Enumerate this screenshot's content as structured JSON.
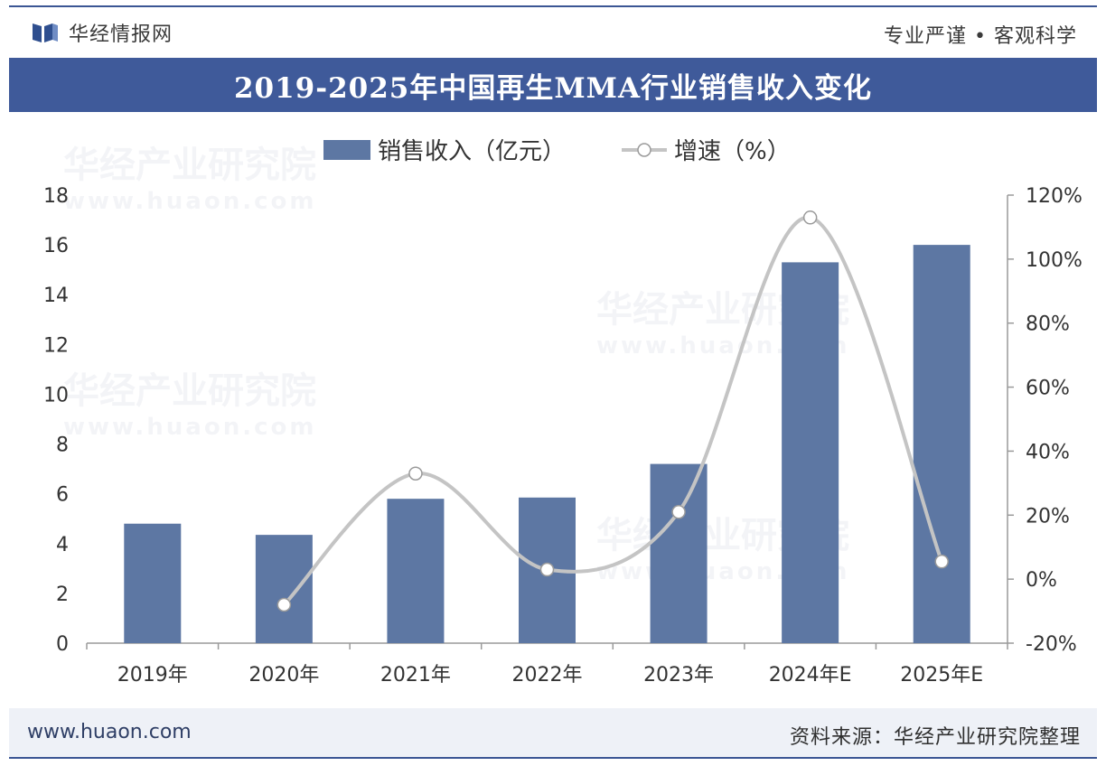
{
  "header": {
    "brand": "华经情报网",
    "motto": "专业严谨 • 客观科学"
  },
  "title": "2019-2025年中国再生MMA行业销售收入变化",
  "watermark": {
    "name": "华经产业研究院",
    "url": "www.huaon.com"
  },
  "footer": {
    "url": "www.huaon.com",
    "source": "资料来源：华经产业研究院整理"
  },
  "colors": {
    "accent": "#3f5a9a",
    "bar": "#5d77a3",
    "line": "#c4c4c4",
    "marker_fill": "#ffffff",
    "marker_stroke": "#9a9a9a"
  },
  "chart_data": {
    "type": "bar",
    "categories": [
      "2019年",
      "2020年",
      "2021年",
      "2022年",
      "2023年",
      "2024年E",
      "2025年E"
    ],
    "series": [
      {
        "name": "销售收入（亿元）",
        "type": "bar",
        "axis": "left",
        "values": [
          4.8,
          4.35,
          5.8,
          5.85,
          7.2,
          15.3,
          16.0
        ]
      },
      {
        "name": "增速（%）",
        "type": "line",
        "axis": "right",
        "values": [
          null,
          -8,
          33,
          3,
          21,
          113,
          5.5
        ]
      }
    ],
    "y_left": {
      "min": 0,
      "max": 18,
      "ticks": [
        "0",
        "2",
        "4",
        "6",
        "8",
        "10",
        "12",
        "14",
        "16",
        "18"
      ]
    },
    "y_right": {
      "min": -20,
      "max": 120,
      "ticks": [
        "-20%",
        "0%",
        "20%",
        "40%",
        "60%",
        "80%",
        "100%",
        "120%"
      ]
    },
    "legend": {
      "position": "top",
      "items": [
        "销售收入（亿元）",
        "增速（%）"
      ]
    }
  }
}
